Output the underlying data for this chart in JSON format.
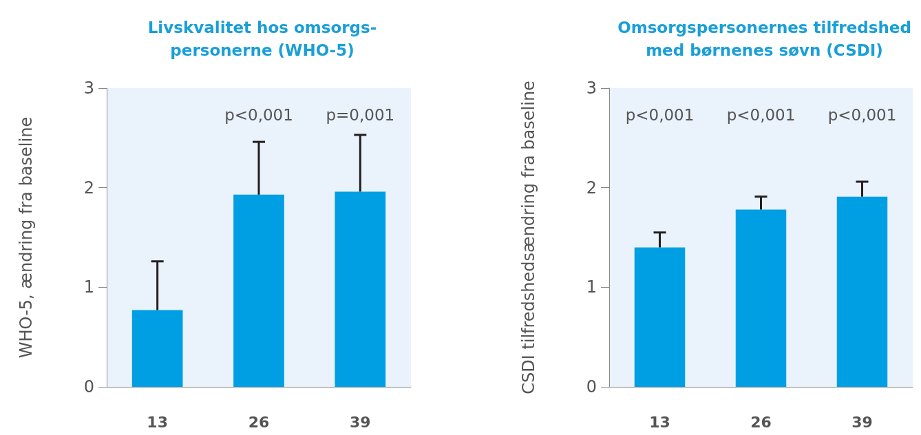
{
  "chart_data": [
    {
      "type": "bar",
      "title": "Livskvalitet hos omsorgs-\npersonerne (WHO-5)",
      "ylabel": "WHO-5, ændring fra baseline",
      "categories": [
        "13",
        "26",
        "39"
      ],
      "series": [
        {
          "color": "#009fe3",
          "values": [
            0.77,
            1.93,
            1.96
          ],
          "errors": [
            [
              0.77,
              1.26
            ],
            [
              1.93,
              2.46
            ],
            [
              1.96,
              2.53
            ]
          ]
        }
      ],
      "ylim": [
        0,
        3
      ],
      "yticks": [
        0,
        1,
        2,
        3
      ],
      "grid": false,
      "annotations": [
        "p<0,001",
        "p=0,001"
      ]
    },
    {
      "type": "bar",
      "title": "Omsorgspersonernes tilfredshed\nmed børnenes søvn (CSDI)",
      "ylabel": "CSDI tilfredshedsændring fra baseline",
      "categories": [
        "13",
        "26",
        "39"
      ],
      "series": [
        {
          "color": "#009fe3",
          "values": [
            1.4,
            1.78,
            1.91
          ],
          "errors": [
            [
              1.4,
              1.55
            ],
            [
              1.78,
              1.91
            ],
            [
              1.91,
              2.06
            ]
          ]
        }
      ],
      "ylim": [
        0,
        3
      ],
      "yticks": [
        0,
        1,
        2,
        3
      ],
      "grid": false,
      "annotations": [
        "p<0,001",
        "p<0,001",
        "p<0,001"
      ]
    }
  ]
}
